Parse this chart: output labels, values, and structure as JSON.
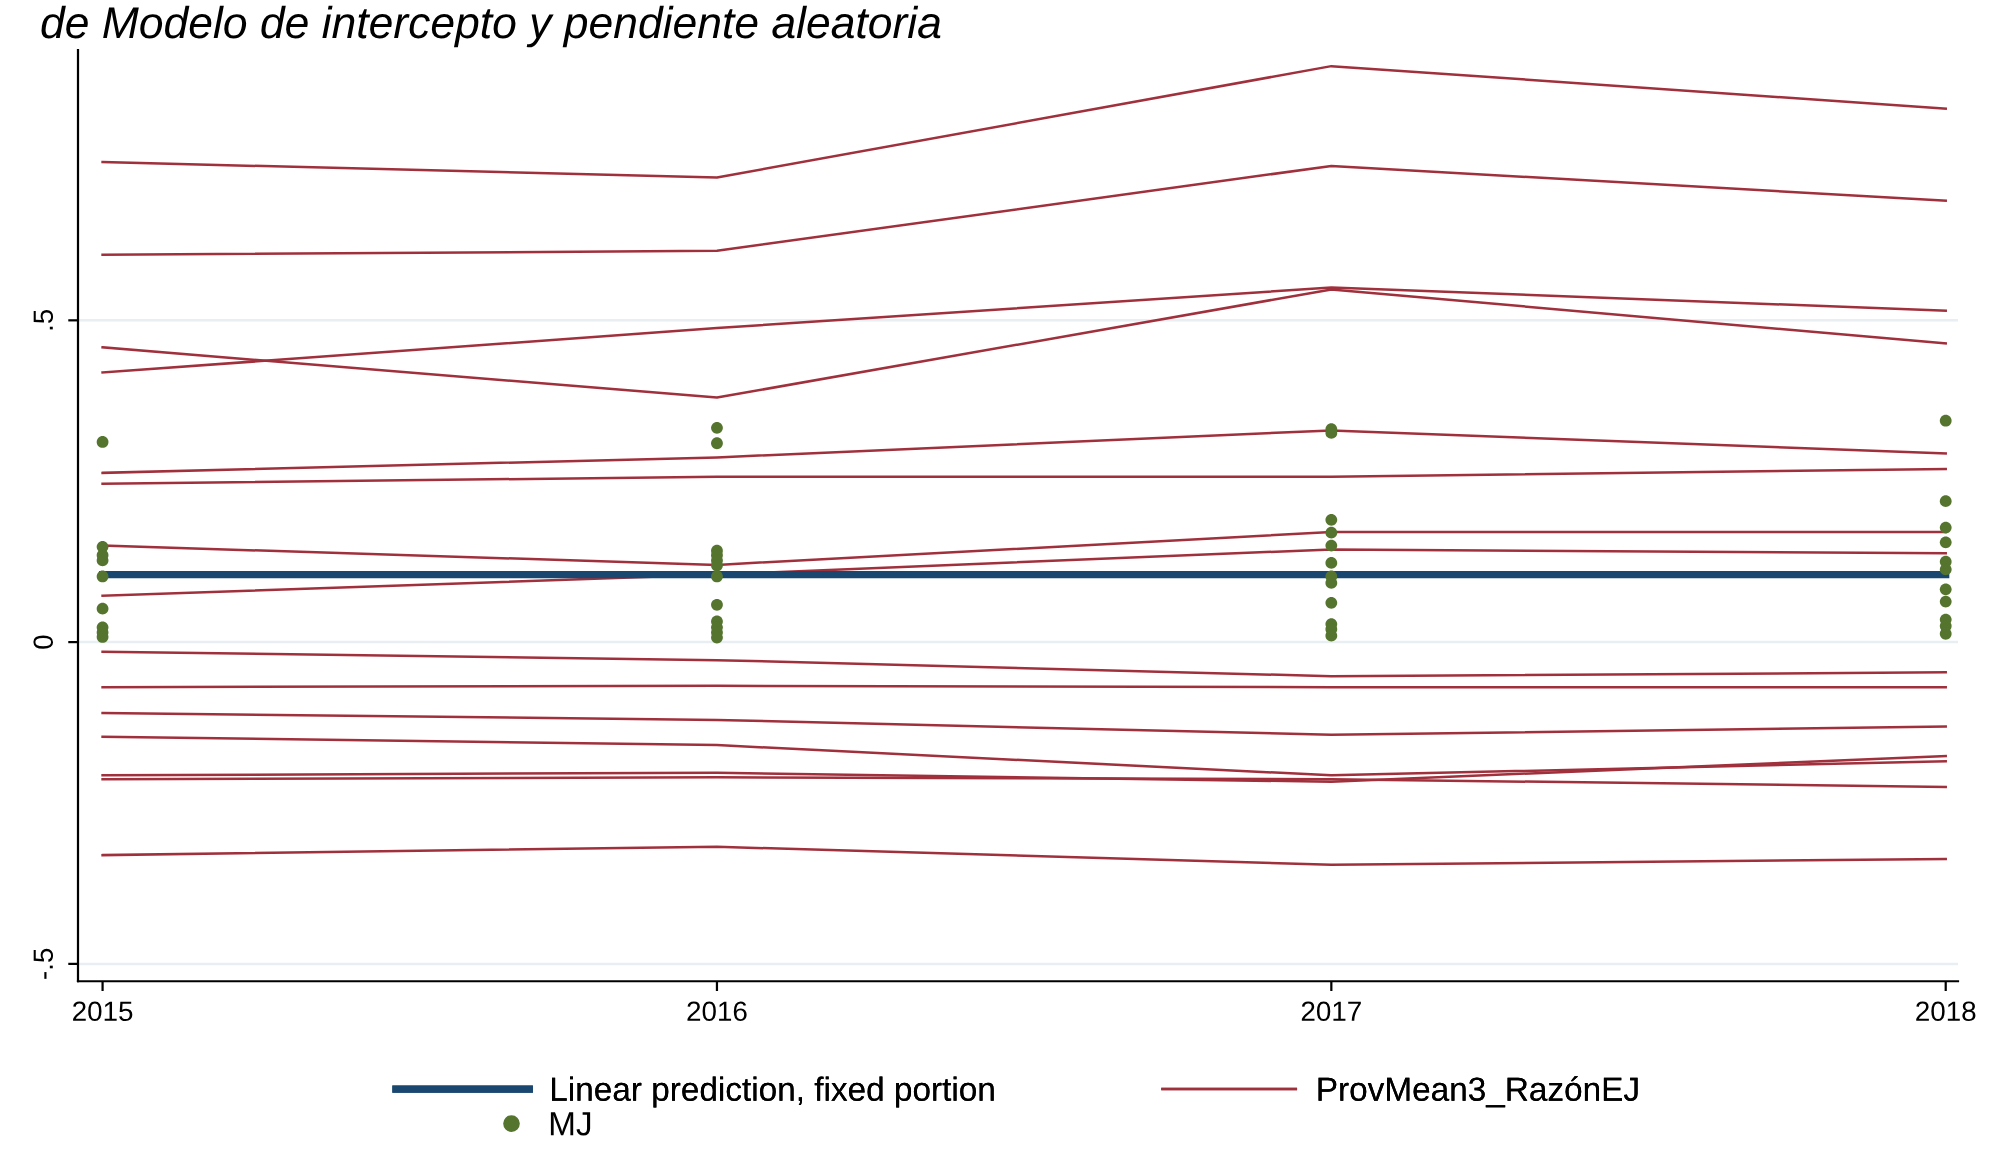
{
  "chart_data": {
    "type": "line",
    "title": "de Modelo de intercepto y pendiente aleatoria",
    "x": [
      2015,
      2016,
      2017,
      2018
    ],
    "xlim": [
      2014.96,
      2018.02
    ],
    "xticks": [
      2015,
      2016,
      2017,
      2018
    ],
    "ylim": [
      -0.527,
      0.92
    ],
    "yticks": [
      {
        "value": -0.5,
        "label": "-.5"
      },
      0,
      {
        "value": 0.5,
        "label": ".5"
      }
    ],
    "grid": "y",
    "legend": "bottom",
    "series": [
      {
        "name": "Linear prediction, fixed portion",
        "color": "#1a476f",
        "values": [
          0.105,
          0.105,
          0.105,
          0.105
        ]
      },
      {
        "name": "ProvMean3_RazónEJ",
        "color": "#a0303c",
        "values": [
          0.746,
          0.722,
          0.895,
          0.829
        ]
      },
      {
        "type": "line",
        "color": "#a0303c",
        "values": [
          0.602,
          0.608,
          0.74,
          0.686
        ]
      },
      {
        "type": "line",
        "color": "#a0303c",
        "values": [
          0.419,
          0.488,
          0.551,
          0.515
        ]
      },
      {
        "type": "line",
        "color": "#a0303c",
        "values": [
          0.458,
          0.38,
          0.548,
          0.464
        ]
      },
      {
        "type": "line",
        "color": "#a0303c",
        "values": [
          0.263,
          0.287,
          0.329,
          0.293
        ]
      },
      {
        "type": "line",
        "color": "#a0303c",
        "values": [
          0.246,
          0.257,
          0.257,
          0.269
        ]
      },
      {
        "type": "line",
        "color": "#a0303c",
        "values": [
          0.15,
          0.12,
          0.171,
          0.171
        ]
      },
      {
        "type": "line",
        "color": "#a0303c",
        "values": [
          0.072,
          0.105,
          0.144,
          0.138
        ]
      },
      {
        "type": "line",
        "color": "#a0303c",
        "values": [
          -0.015,
          -0.028,
          -0.053,
          -0.047
        ]
      },
      {
        "type": "line",
        "color": "#a0303c",
        "values": [
          -0.07,
          -0.068,
          -0.07,
          -0.07
        ]
      },
      {
        "type": "line",
        "color": "#a0303c",
        "values": [
          -0.11,
          -0.121,
          -0.144,
          -0.131
        ]
      },
      {
        "type": "line",
        "color": "#a0303c",
        "values": [
          -0.147,
          -0.16,
          -0.207,
          -0.185
        ]
      },
      {
        "type": "line",
        "color": "#a0303c",
        "values": [
          -0.207,
          -0.203,
          -0.217,
          -0.177
        ]
      },
      {
        "type": "line",
        "color": "#a0303c",
        "values": [
          -0.213,
          -0.21,
          -0.213,
          -0.225
        ]
      },
      {
        "type": "line",
        "color": "#a0303c",
        "values": [
          -0.331,
          -0.318,
          -0.346,
          -0.337
        ]
      },
      {
        "name": "MJ",
        "type": "scatter",
        "color": "#55752f",
        "marker": "circle",
        "x": [
          2015,
          2015,
          2015,
          2015,
          2015,
          2015,
          2015,
          2015,
          2015,
          2016,
          2016,
          2016,
          2016,
          2016,
          2016,
          2016,
          2016,
          2016,
          2016,
          2016,
          2016,
          2017,
          2017,
          2017,
          2017,
          2017,
          2017,
          2017,
          2017,
          2017,
          2017,
          2017,
          2017,
          2018,
          2018,
          2018,
          2018,
          2018,
          2018,
          2018,
          2018,
          2018,
          2018,
          2018
        ],
        "values": [
          0.311,
          0.148,
          0.135,
          0.127,
          0.102,
          0.052,
          0.023,
          0.015,
          0.008,
          0.333,
          0.309,
          0.142,
          0.135,
          0.127,
          0.119,
          0.102,
          0.058,
          0.032,
          0.023,
          0.015,
          0.007,
          0.331,
          0.325,
          0.19,
          0.17,
          0.15,
          0.123,
          0.102,
          0.092,
          0.061,
          0.028,
          0.02,
          0.01,
          0.344,
          0.219,
          0.178,
          0.155,
          0.125,
          0.113,
          0.082,
          0.063,
          0.035,
          0.025,
          0.013
        ]
      }
    ]
  }
}
